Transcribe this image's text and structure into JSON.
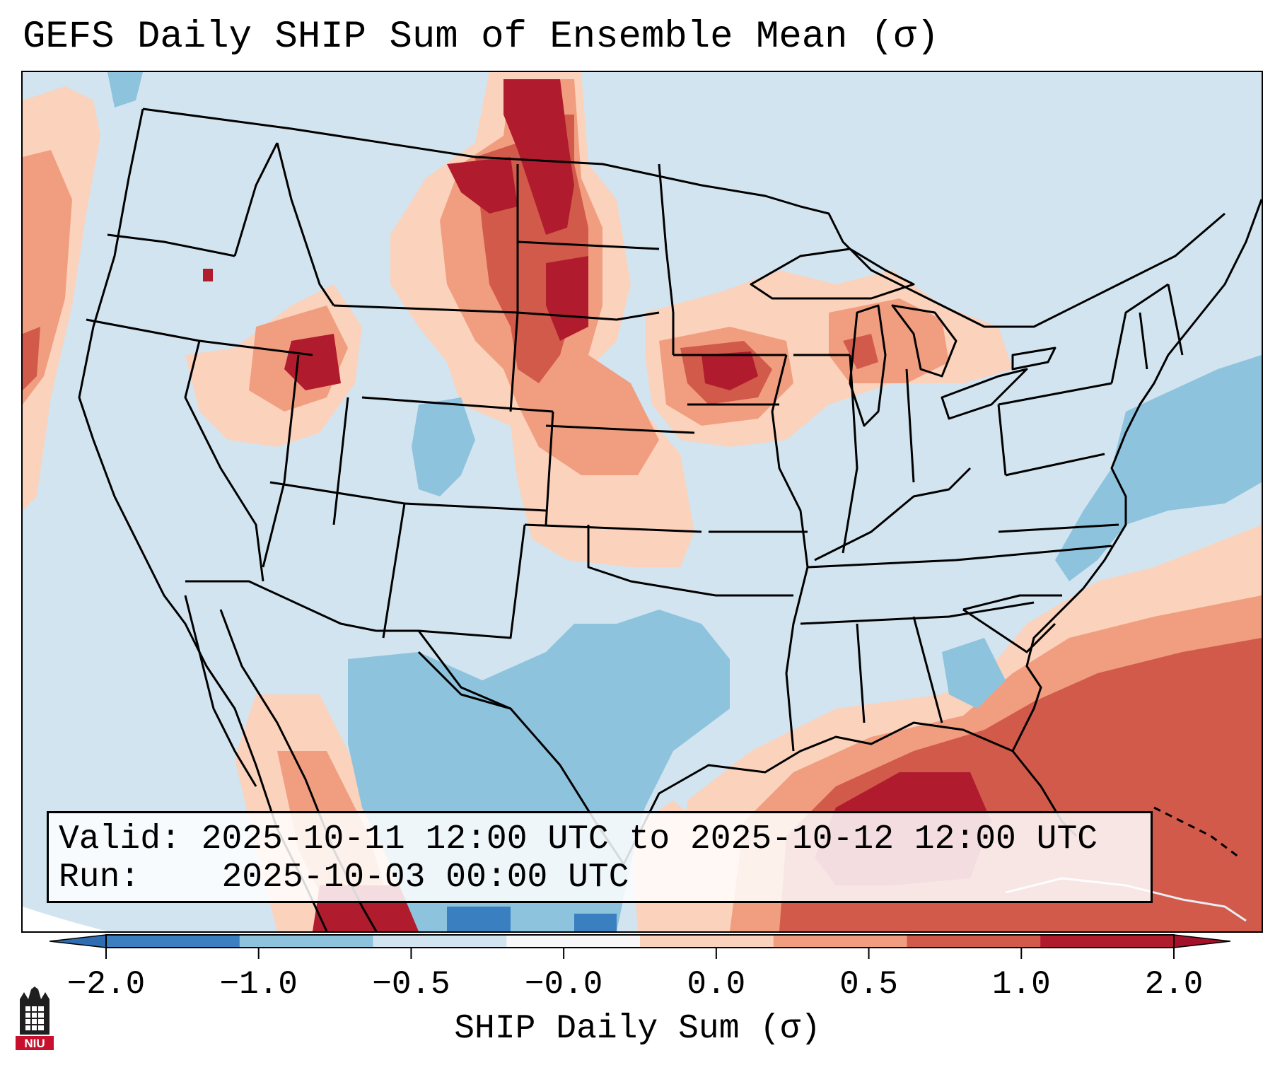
{
  "title": "GEFS Daily SHIP Sum of Ensemble Mean (σ)",
  "info": {
    "valid_label": "Valid:",
    "valid_value": "2025-10-11 12:00 UTC to 2025-10-12 12:00 UTC",
    "run_label": "Run:",
    "run_value": "2025-10-03 00:00 UTC"
  },
  "colorbar": {
    "label": "SHIP Daily Sum (σ)",
    "tick_labels": [
      "−2.0",
      "−1.0",
      "−0.5",
      "−0.0",
      "0.0",
      "0.5",
      "1.0",
      "2.0"
    ],
    "bin_colors": [
      "#3a7fc0",
      "#8ec3de",
      "#d2e4ef",
      "#f7f7f7",
      "#fbd2bc",
      "#f09e7f",
      "#d25a4a",
      "#b01c2e"
    ],
    "extend_low_color": "#2f6db2",
    "extend_high_color": "#a5112a"
  },
  "logo": {
    "text": "NIU"
  },
  "map": {
    "background_color": "#d2e4ef",
    "boundary_color": "#000000"
  }
}
